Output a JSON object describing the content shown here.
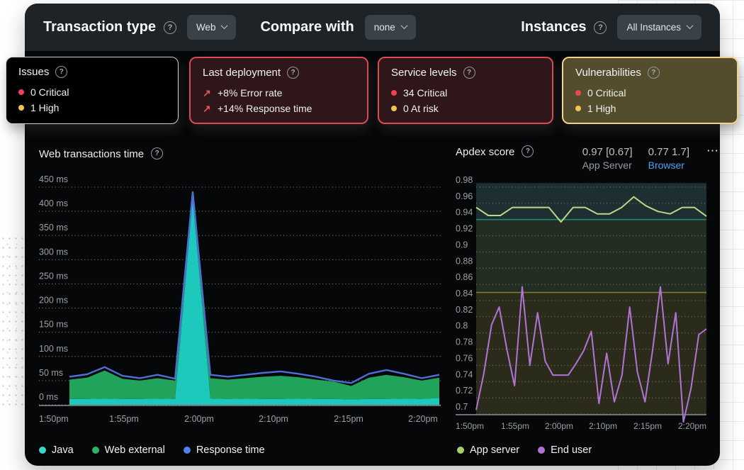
{
  "topbar": {
    "transaction_type_label": "Transaction type",
    "transaction_type_value": "Web",
    "compare_with_label": "Compare with",
    "compare_with_value": "none",
    "instances_label": "Instances",
    "instances_value": "All Instances"
  },
  "cards": [
    {
      "title": "Issues",
      "rows": [
        {
          "icon": "critical-dot",
          "text": "0 Critical"
        },
        {
          "icon": "high-dot",
          "text": "1 High"
        }
      ]
    },
    {
      "title": "Last deployment",
      "rows": [
        {
          "icon": "arrow-up-right",
          "text": "+8% Error rate"
        },
        {
          "icon": "arrow-up-right",
          "text": "+14% Response time"
        }
      ]
    },
    {
      "title": "Service levels",
      "rows": [
        {
          "icon": "critical-dot",
          "text": "34 Critical"
        },
        {
          "icon": "high-dot",
          "text": "0 At risk"
        }
      ]
    },
    {
      "title": "Vulnerabilities",
      "rows": [
        {
          "icon": "critical-dot",
          "text": "0 Critical"
        },
        {
          "icon": "high-dot",
          "text": "1 High"
        }
      ]
    }
  ],
  "colors": {
    "critical_dot": "#f4414f",
    "high_dot": "#f2c456",
    "deploy_arrow": "#e2575f"
  },
  "chart_data": [
    {
      "type": "area",
      "title": "Web transactions time",
      "stacked": true,
      "grid": "dotted-horizontal",
      "ylim": [
        0,
        450
      ],
      "y_ticks": [
        450,
        400,
        350,
        300,
        250,
        200,
        150,
        100,
        50,
        0
      ],
      "y_tick_suffix": " ms",
      "x_ticks": [
        "1:50pm",
        "1:55pm",
        "2:00pm",
        "2:10pm",
        "2:15pm",
        "2:20pm"
      ],
      "series": [
        {
          "name": "Java",
          "render": "area",
          "color": "#1dc9bd",
          "values": [
            12,
            12,
            13,
            12,
            12,
            13,
            12,
            425,
            13,
            12,
            13,
            12,
            12,
            13,
            12,
            12,
            11,
            12,
            12,
            13,
            12,
            14
          ]
        },
        {
          "name": "Web external",
          "render": "area",
          "color": "#21a35c",
          "values": [
            40,
            44,
            58,
            42,
            38,
            42,
            38,
            15,
            42,
            40,
            42,
            46,
            48,
            44,
            40,
            36,
            28,
            44,
            50,
            44,
            38,
            42
          ]
        },
        {
          "name": "Response time",
          "render": "line",
          "color": "#4b6fd6",
          "values": [
            58,
            63,
            78,
            60,
            55,
            62,
            54,
            440,
            62,
            58,
            62,
            66,
            69,
            64,
            58,
            50,
            45,
            64,
            72,
            64,
            55,
            62
          ]
        }
      ],
      "legend": [
        {
          "label": "Java",
          "color": "#38d6c7"
        },
        {
          "label": "Web external",
          "color": "#2fb36a"
        },
        {
          "label": "Response time",
          "color": "#5181e8"
        }
      ],
      "legend_position": "bottom"
    },
    {
      "type": "line",
      "title": "Apdex score",
      "grid": "dotted-horizontal",
      "ylim": [
        0.7,
        0.98
      ],
      "y_ticks": [
        0.98,
        0.96,
        0.94,
        0.92,
        0.9,
        0.88,
        0.86,
        0.84,
        0.82,
        0.8,
        0.78,
        0.76,
        0.74,
        0.72,
        0.7
      ],
      "x_ticks": [
        "1:50pm",
        "1:55pm",
        "2:00pm",
        "2:10pm",
        "2:15pm",
        "2:20pm"
      ],
      "header_stats": [
        {
          "value": "0.97 [0.67]",
          "label": "App Server"
        },
        {
          "value": "0.77 1.7]",
          "label": "Browser"
        }
      ],
      "menu_icon": "ellipsis",
      "thresholds": [
        {
          "value": 0.94,
          "color": "#2e7d6e"
        },
        {
          "value": 0.85,
          "color": "#7f7f35"
        }
      ],
      "bands": [
        {
          "from": 0.94,
          "to": 0.985,
          "color": "#1d2f30"
        },
        {
          "from": 0.85,
          "to": 0.94,
          "color": "#232e23"
        },
        {
          "from": 0.69,
          "to": 0.85,
          "color": "#2b2b1c"
        }
      ],
      "series": [
        {
          "name": "App server",
          "render": "line",
          "color": "#b7da8b",
          "values": [
            0.955,
            0.945,
            0.945,
            0.955,
            0.955,
            0.955,
            0.955,
            0.937,
            0.955,
            0.955,
            0.947,
            0.947,
            0.955,
            0.968,
            0.957,
            0.95,
            0.947,
            0.955,
            0.955,
            0.944
          ]
        },
        {
          "name": "End user",
          "render": "line",
          "color": "#b274d2",
          "values": [
            0.705,
            0.75,
            0.81,
            0.832,
            0.78,
            0.735,
            0.857,
            0.76,
            0.825,
            0.765,
            0.748,
            0.748,
            0.748,
            0.762,
            0.778,
            0.802,
            0.713,
            0.775,
            0.715,
            0.748,
            0.832,
            0.752,
            0.715,
            0.78,
            0.857,
            0.762,
            0.825,
            0.69,
            0.732,
            0.798,
            0.805
          ]
        }
      ],
      "legend": [
        {
          "label": "App server",
          "color": "#a8cf6b"
        },
        {
          "label": "End user",
          "color": "#b173d2"
        }
      ],
      "legend_position": "bottom"
    }
  ]
}
